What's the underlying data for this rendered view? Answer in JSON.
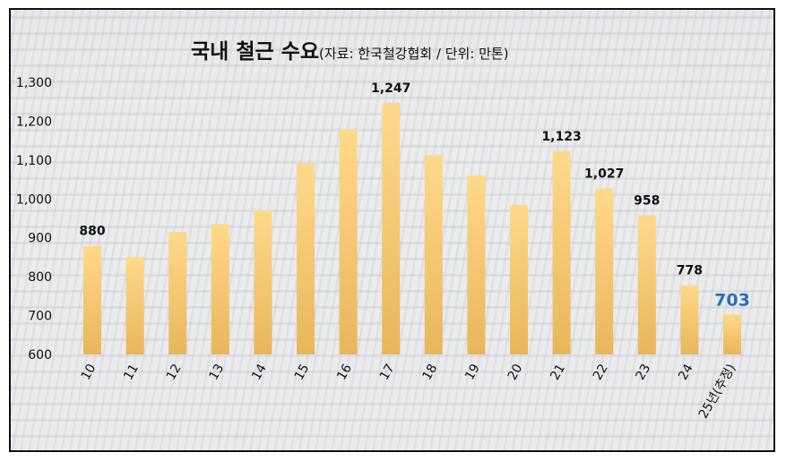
{
  "chart_data": {
    "type": "bar",
    "title": "국내 철근 수요",
    "subtitle": "(자료: 한국철강협회 / 단위: 만톤)",
    "categories": [
      "10",
      "11",
      "12",
      "13",
      "14",
      "15",
      "16",
      "17",
      "18",
      "19",
      "20",
      "21",
      "22",
      "23",
      "24",
      "25년(추정)"
    ],
    "values": [
      880,
      850,
      915,
      935,
      970,
      1092,
      1178,
      1247,
      1113,
      1060,
      985,
      1123,
      1027,
      958,
      778,
      703
    ],
    "data_labels": [
      "880",
      "",
      "",
      "",
      "",
      "",
      "",
      "1,247",
      "",
      "",
      "",
      "1,123",
      "1,027",
      "958",
      "778",
      "703"
    ],
    "highlight_label": "703",
    "ylim": [
      600,
      1300
    ],
    "yticks": [
      "600",
      "700",
      "800",
      "900",
      "1,000",
      "1,100",
      "1,200",
      "1,300"
    ],
    "ytick_values": [
      600,
      700,
      800,
      900,
      1000,
      1100,
      1200,
      1300
    ],
    "grid": false,
    "colors": {
      "bar_top": "#ffd98a",
      "bar_bottom": "#e8b65a",
      "highlight_text": "#2f6db5",
      "text": "#111111"
    }
  }
}
